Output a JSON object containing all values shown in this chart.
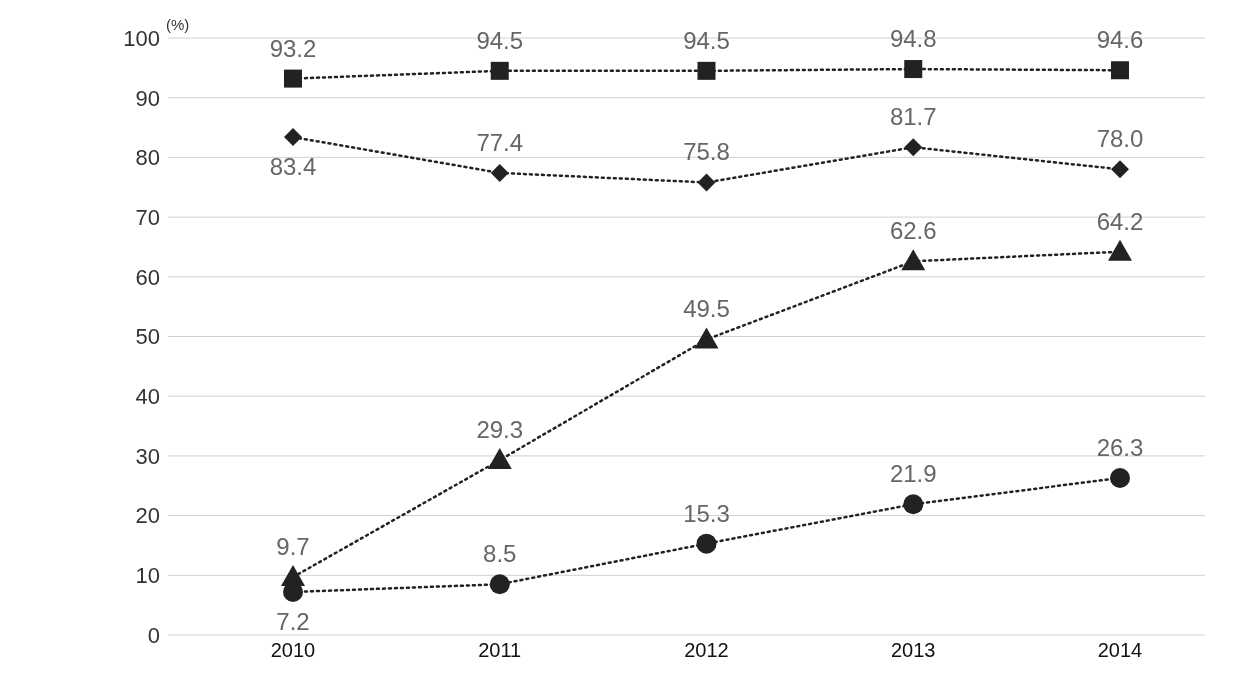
{
  "chart_data": {
    "type": "line",
    "ylabel": "(%)",
    "categories": [
      "2010",
      "2011",
      "2012",
      "2013",
      "2014"
    ],
    "series": [
      {
        "color": "#222222",
        "marker": "square",
        "values": [
          93.2,
          94.5,
          94.5,
          94.8,
          94.6
        ],
        "value_labels": [
          "93.2",
          "94.5",
          "94.5",
          "94.8",
          "94.6"
        ]
      },
      {
        "color": "#222222",
        "marker": "diamond",
        "values": [
          83.4,
          77.4,
          75.8,
          81.7,
          78.0
        ],
        "value_labels": [
          "83.4",
          "77.4",
          "75.8",
          "81.7",
          "78.0"
        ]
      },
      {
        "color": "#222222",
        "marker": "triangle",
        "values": [
          9.7,
          29.3,
          49.5,
          62.6,
          64.2
        ],
        "value_labels": [
          "9.7",
          "29.3",
          "49.5",
          "62.6",
          "64.2"
        ]
      },
      {
        "color": "#222222",
        "marker": "circle",
        "values": [
          7.2,
          8.5,
          15.3,
          21.9,
          26.3
        ],
        "value_labels": [
          "7.2",
          "8.5",
          "15.3",
          "21.9",
          "26.3"
        ]
      }
    ],
    "ylim": [
      0,
      100
    ],
    "yticks": [
      0,
      10,
      20,
      30,
      40,
      50,
      60,
      70,
      80,
      90,
      100
    ],
    "grid": "y",
    "line_style": "dotted"
  }
}
